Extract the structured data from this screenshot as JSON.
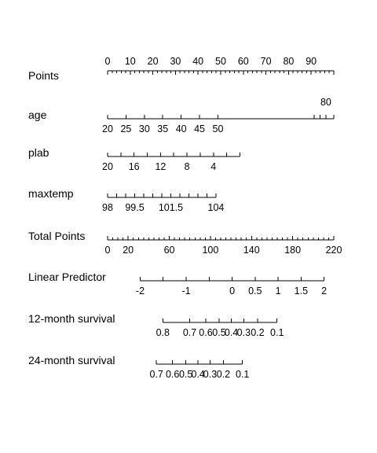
{
  "chart_data": {
    "type": "nomogram",
    "title": "",
    "point_scale": {
      "min": 0,
      "max": 100
    },
    "rows": [
      {
        "label": "Points",
        "scale": {
          "from": 0,
          "to": 100
        },
        "labels_position": "above",
        "major_ticks": [
          {
            "value": 0,
            "label": "0"
          },
          {
            "value": 10,
            "label": "10"
          },
          {
            "value": 20,
            "label": "20"
          },
          {
            "value": 30,
            "label": "30"
          },
          {
            "value": 40,
            "label": "40"
          },
          {
            "value": 50,
            "label": "50"
          },
          {
            "value": 60,
            "label": "60"
          },
          {
            "value": 70,
            "label": "70"
          },
          {
            "value": 80,
            "label": "80"
          },
          {
            "value": 90,
            "label": "90"
          },
          {
            "value": 100,
            "label": ""
          }
        ],
        "minor_step": 2
      },
      {
        "label": "age",
        "scale": {
          "from": 20,
          "to": 81.5,
          "from_points": 0,
          "to_points": 100
        },
        "labels_position": "below",
        "major_ticks": [
          {
            "value": 20,
            "label": "20"
          },
          {
            "value": 25,
            "label": "25"
          },
          {
            "value": 30,
            "label": "30"
          },
          {
            "value": 35,
            "label": "35"
          },
          {
            "value": 40,
            "label": "40"
          },
          {
            "value": 45,
            "label": "45"
          },
          {
            "value": 50,
            "label": "50"
          }
        ],
        "compressed_ticks": [
          {
            "value": 60,
            "points": 91.3,
            "label": ""
          },
          {
            "value": 70,
            "points": 93.9,
            "label": ""
          },
          {
            "value": 80,
            "points": 96.5,
            "label": "80"
          },
          {
            "value": 81.5,
            "points": 100,
            "label": ""
          }
        ],
        "compressed_label_position": "above"
      },
      {
        "label": "plab",
        "scale": {
          "from": 20,
          "to": 0,
          "from_points": 0,
          "to_points": 58.5
        },
        "labels_position": "below",
        "major_ticks": [
          {
            "value": 20,
            "label": "20"
          },
          {
            "value": 18,
            "label": ""
          },
          {
            "value": 16,
            "label": "16"
          },
          {
            "value": 14,
            "label": ""
          },
          {
            "value": 12,
            "label": "12"
          },
          {
            "value": 10,
            "label": ""
          },
          {
            "value": 8,
            "label": "8"
          },
          {
            "value": 6,
            "label": ""
          },
          {
            "value": 4,
            "label": "4"
          },
          {
            "value": 2,
            "label": ""
          },
          {
            "value": 0,
            "label": ""
          }
        ]
      },
      {
        "label": "maxtemp",
        "scale": {
          "from": 98,
          "to": 104,
          "from_points": 0,
          "to_points": 47.9
        },
        "labels_position": "below",
        "major_ticks": [
          {
            "value": 98,
            "label": "98"
          },
          {
            "value": 98.5,
            "label": ""
          },
          {
            "value": 99,
            "label": ""
          },
          {
            "value": 99.5,
            "label": "99.5"
          },
          {
            "value": 100,
            "label": ""
          },
          {
            "value": 100.5,
            "label": ""
          },
          {
            "value": 101,
            "label": ""
          },
          {
            "value": 101.5,
            "label": "101.5"
          },
          {
            "value": 102,
            "label": ""
          },
          {
            "value": 102.5,
            "label": ""
          },
          {
            "value": 103,
            "label": ""
          },
          {
            "value": 103.5,
            "label": ""
          },
          {
            "value": 104,
            "label": "104"
          }
        ]
      },
      {
        "label": "Total Points",
        "scale": {
          "from": 0,
          "to": 220,
          "from_points": 0,
          "to_points": 100
        },
        "labels_position": "below",
        "major_ticks": [
          {
            "value": 0,
            "label": "0"
          },
          {
            "value": 20,
            "label": "20"
          },
          {
            "value": 60,
            "label": "60"
          },
          {
            "value": 100,
            "label": "100"
          },
          {
            "value": 140,
            "label": "140"
          },
          {
            "value": 180,
            "label": "180"
          },
          {
            "value": 220,
            "label": "220"
          }
        ],
        "minor_step": 5
      },
      {
        "label": "Linear Predictor",
        "scale": {
          "from": -2,
          "to": 2,
          "from_points": 14.4,
          "to_points": 95.7
        },
        "labels_position": "below",
        "major_ticks": [
          {
            "value": -2,
            "label": "-2"
          },
          {
            "value": -1.5,
            "label": ""
          },
          {
            "value": -1,
            "label": "-1"
          },
          {
            "value": -0.5,
            "label": ""
          },
          {
            "value": 0,
            "label": "0"
          },
          {
            "value": 0.5,
            "label": "0.5"
          },
          {
            "value": 1,
            "label": "1"
          },
          {
            "value": 1.5,
            "label": "1.5"
          },
          {
            "value": 2,
            "label": "2"
          }
        ]
      },
      {
        "label": "12-month survival",
        "labels_position": "below",
        "major_ticks": [
          {
            "value": 0.8,
            "points": 24.4,
            "label": "0.8"
          },
          {
            "value": 0.7,
            "points": 36.3,
            "label": "0.7"
          },
          {
            "value": 0.6,
            "points": 43.4,
            "label": "0.6"
          },
          {
            "value": 0.5,
            "points": 49.3,
            "label": "0.5"
          },
          {
            "value": 0.4,
            "points": 54.7,
            "label": "0.4"
          },
          {
            "value": 0.3,
            "points": 60.2,
            "label": "0.3"
          },
          {
            "value": 0.2,
            "points": 66.3,
            "label": "0.2"
          },
          {
            "value": 0.1,
            "points": 74.9,
            "label": "0.1"
          }
        ]
      },
      {
        "label": "24-month survival",
        "labels_position": "below",
        "major_ticks": [
          {
            "value": 0.7,
            "points": 21.6,
            "label": "0.7"
          },
          {
            "value": 0.6,
            "points": 28.7,
            "label": "0.6"
          },
          {
            "value": 0.5,
            "points": 34.6,
            "label": "0.5"
          },
          {
            "value": 0.4,
            "points": 40.0,
            "label": "0.4"
          },
          {
            "value": 0.3,
            "points": 45.3,
            "label": "0.3"
          },
          {
            "value": 0.2,
            "points": 51.2,
            "label": "0.2"
          },
          {
            "value": 0.1,
            "points": 59.6,
            "label": "0.1"
          }
        ]
      }
    ]
  }
}
